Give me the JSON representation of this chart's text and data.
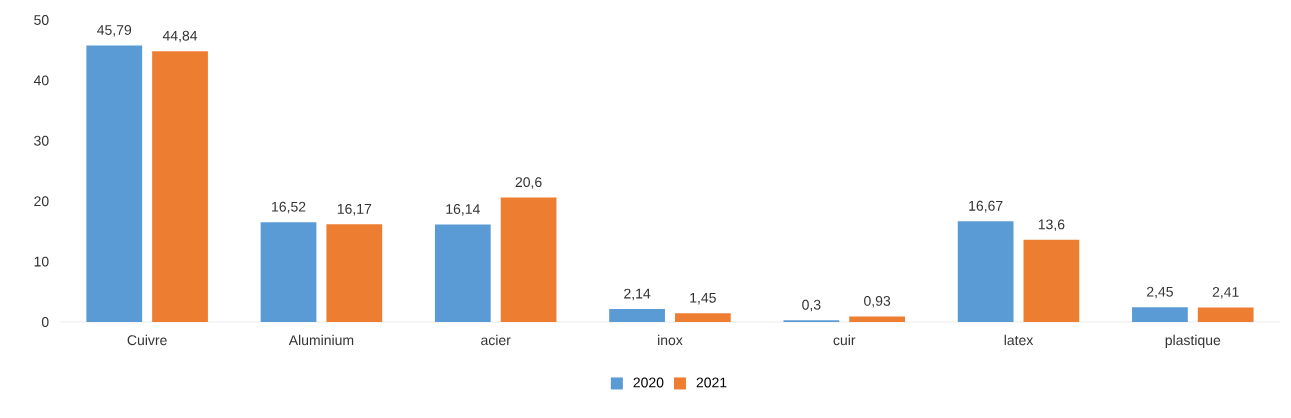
{
  "chart_data": {
    "type": "bar",
    "categories": [
      "Cuivre",
      "Aluminium",
      "acier",
      "inox",
      "cuir",
      "latex",
      "plastique"
    ],
    "series": [
      {
        "name": "2020",
        "color": "#5b9bd5",
        "values": [
          45.79,
          16.52,
          16.14,
          2.14,
          0.3,
          16.67,
          2.45
        ],
        "value_labels": [
          "45,79",
          "16,52",
          "16,14",
          "2,14",
          "0,3",
          "16,67",
          "2,45"
        ]
      },
      {
        "name": "2021",
        "color": "#ed7d31",
        "values": [
          44.84,
          16.17,
          20.6,
          1.45,
          0.93,
          13.6,
          2.41
        ],
        "value_labels": [
          "44,84",
          "16,17",
          "20,6",
          "1,45",
          "0,93",
          "13,6",
          "2,41"
        ]
      }
    ],
    "ylim": [
      0,
      50
    ],
    "yticks": [
      0,
      10,
      20,
      30,
      40,
      50
    ],
    "legend": "bottom"
  }
}
